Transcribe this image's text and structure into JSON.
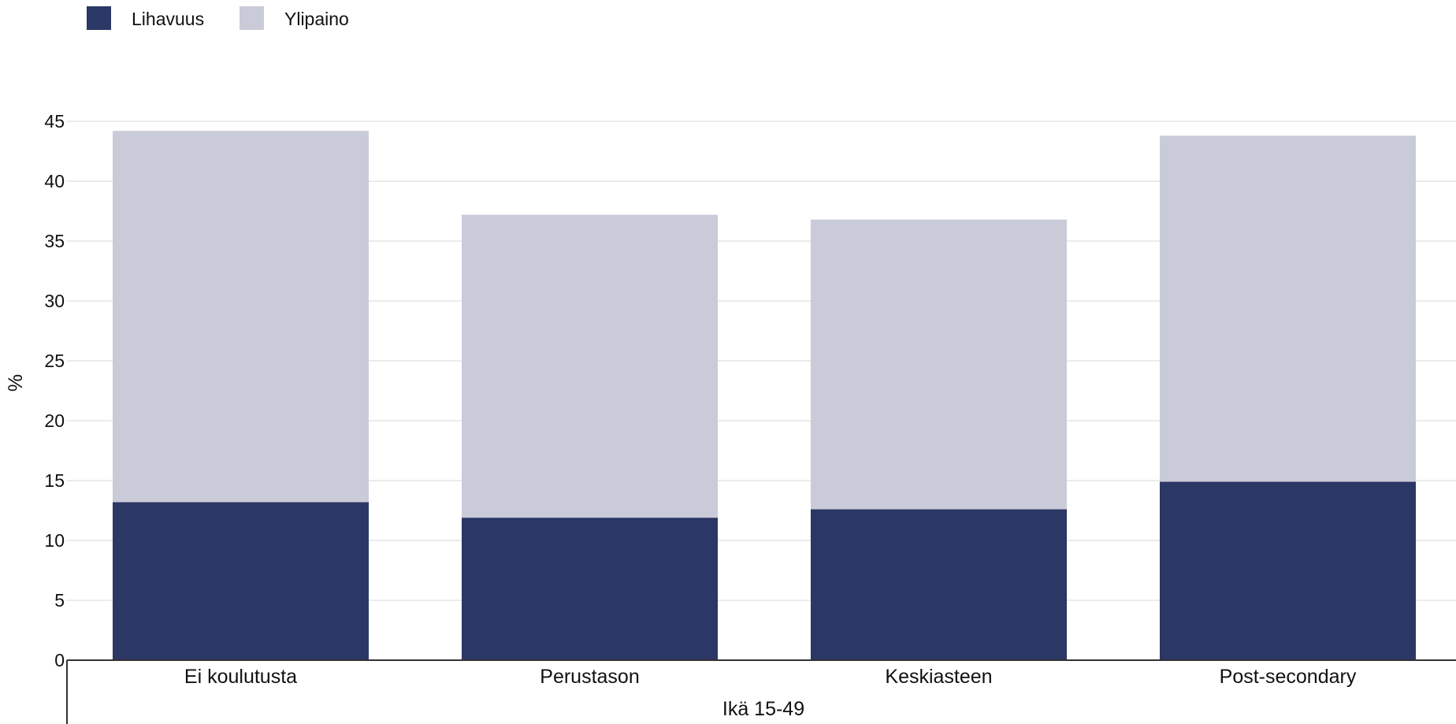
{
  "chart_data": {
    "type": "bar",
    "stacked": true,
    "categories": [
      "Ei koulutusta",
      "Perustason",
      "Keskiasteen",
      "Post-secondary"
    ],
    "series": [
      {
        "name": "Lihavuus",
        "color": "#2b3764",
        "values": [
          13.2,
          11.9,
          12.6,
          14.9
        ]
      },
      {
        "name": "Ylipaino",
        "color": "#cacbd8",
        "values": [
          31.0,
          25.3,
          24.2,
          28.9
        ]
      }
    ],
    "xlabel": "Ikä 15-49",
    "ylabel": "%",
    "ylim": [
      0,
      45
    ],
    "yticks": [
      0,
      5,
      10,
      15,
      20,
      25,
      30,
      35,
      40,
      45
    ],
    "grid": true,
    "legend_position": "top-left"
  }
}
